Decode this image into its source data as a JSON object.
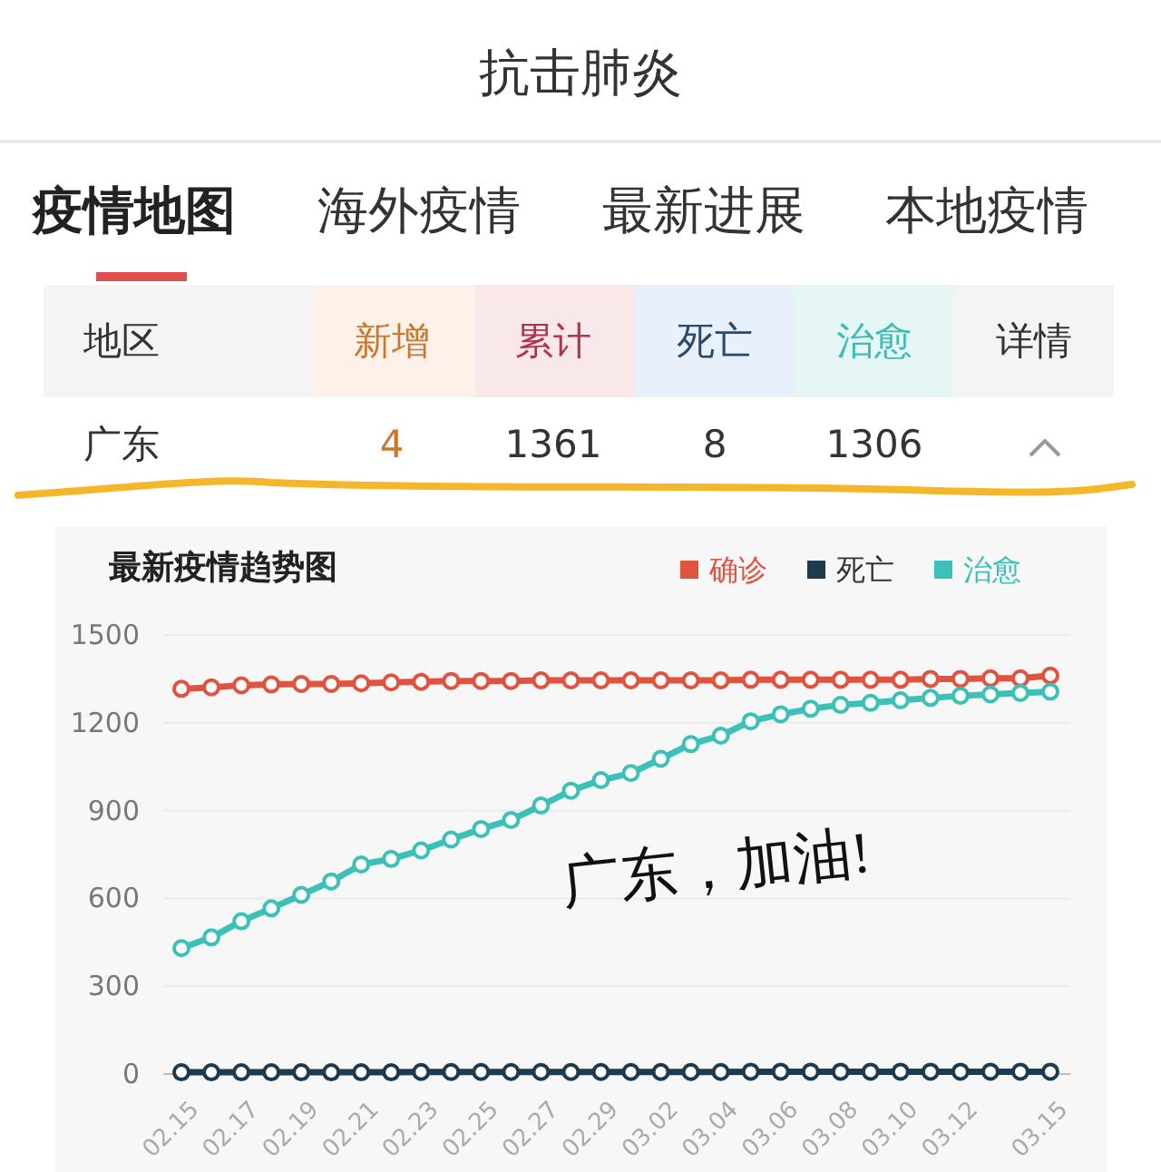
{
  "chart_data": [
    {
      "type": "other",
      "title": "抗击肺炎",
      "annotations": [
        "疫情地图",
        "海外疫情",
        "最新进展",
        "本地疫情"
      ]
    },
    {
      "type": "other",
      "annotations": [
        "地区",
        "新增",
        "累计",
        "死亡",
        "治愈",
        "详情",
        "广东",
        "4",
        "1361",
        "8",
        "1306"
      ]
    },
    {
      "type": "line",
      "title": "最新疫情趋势图",
      "categories": [
        "02.15",
        null,
        "02.17",
        null,
        "02.19",
        null,
        "02.21",
        null,
        "02.23",
        null,
        "02.25",
        null,
        "02.27",
        null,
        "02.29",
        null,
        "03.02",
        null,
        "03.04",
        null,
        "03.06",
        null,
        "03.08",
        null,
        "03.10",
        null,
        "03.12",
        null,
        null,
        "03.15"
      ],
      "series": [
        {
          "name": "确诊",
          "color": "#e0533f",
          "values": [
            1316,
            1321,
            1328,
            1331,
            1333,
            1333,
            1335,
            1338,
            1340,
            1343,
            1343,
            1343,
            1345,
            1345,
            1345,
            1345,
            1345,
            1345,
            1345,
            1347,
            1347,
            1347,
            1347,
            1347,
            1347,
            1350,
            1350,
            1352,
            1352,
            1361
          ]
        },
        {
          "name": "死亡",
          "color": "#1d3a4f",
          "values": [
            6,
            6,
            6,
            6,
            6,
            6,
            6,
            6,
            7,
            7,
            7,
            7,
            7,
            7,
            7,
            7,
            7,
            7,
            7,
            8,
            8,
            8,
            8,
            8,
            8,
            8,
            8,
            8,
            8,
            8
          ]
        },
        {
          "name": "治愈",
          "color": "#3cc1b9",
          "values": [
            430,
            467,
            522,
            566,
            612,
            658,
            716,
            735,
            764,
            801,
            837,
            868,
            917,
            968,
            1004,
            1028,
            1077,
            1127,
            1156,
            1205,
            1229,
            1248,
            1261,
            1268,
            1277,
            1285,
            1292,
            1297,
            1302,
            1306
          ]
        }
      ],
      "ylim": [
        0,
        1500
      ],
      "yticks": [
        0,
        300,
        600,
        900,
        1200,
        1500
      ],
      "grid": "y",
      "legend": "top right",
      "marker": "circle",
      "line_style": "solid",
      "annotations": [
        "广东，加油!"
      ]
    }
  ]
}
